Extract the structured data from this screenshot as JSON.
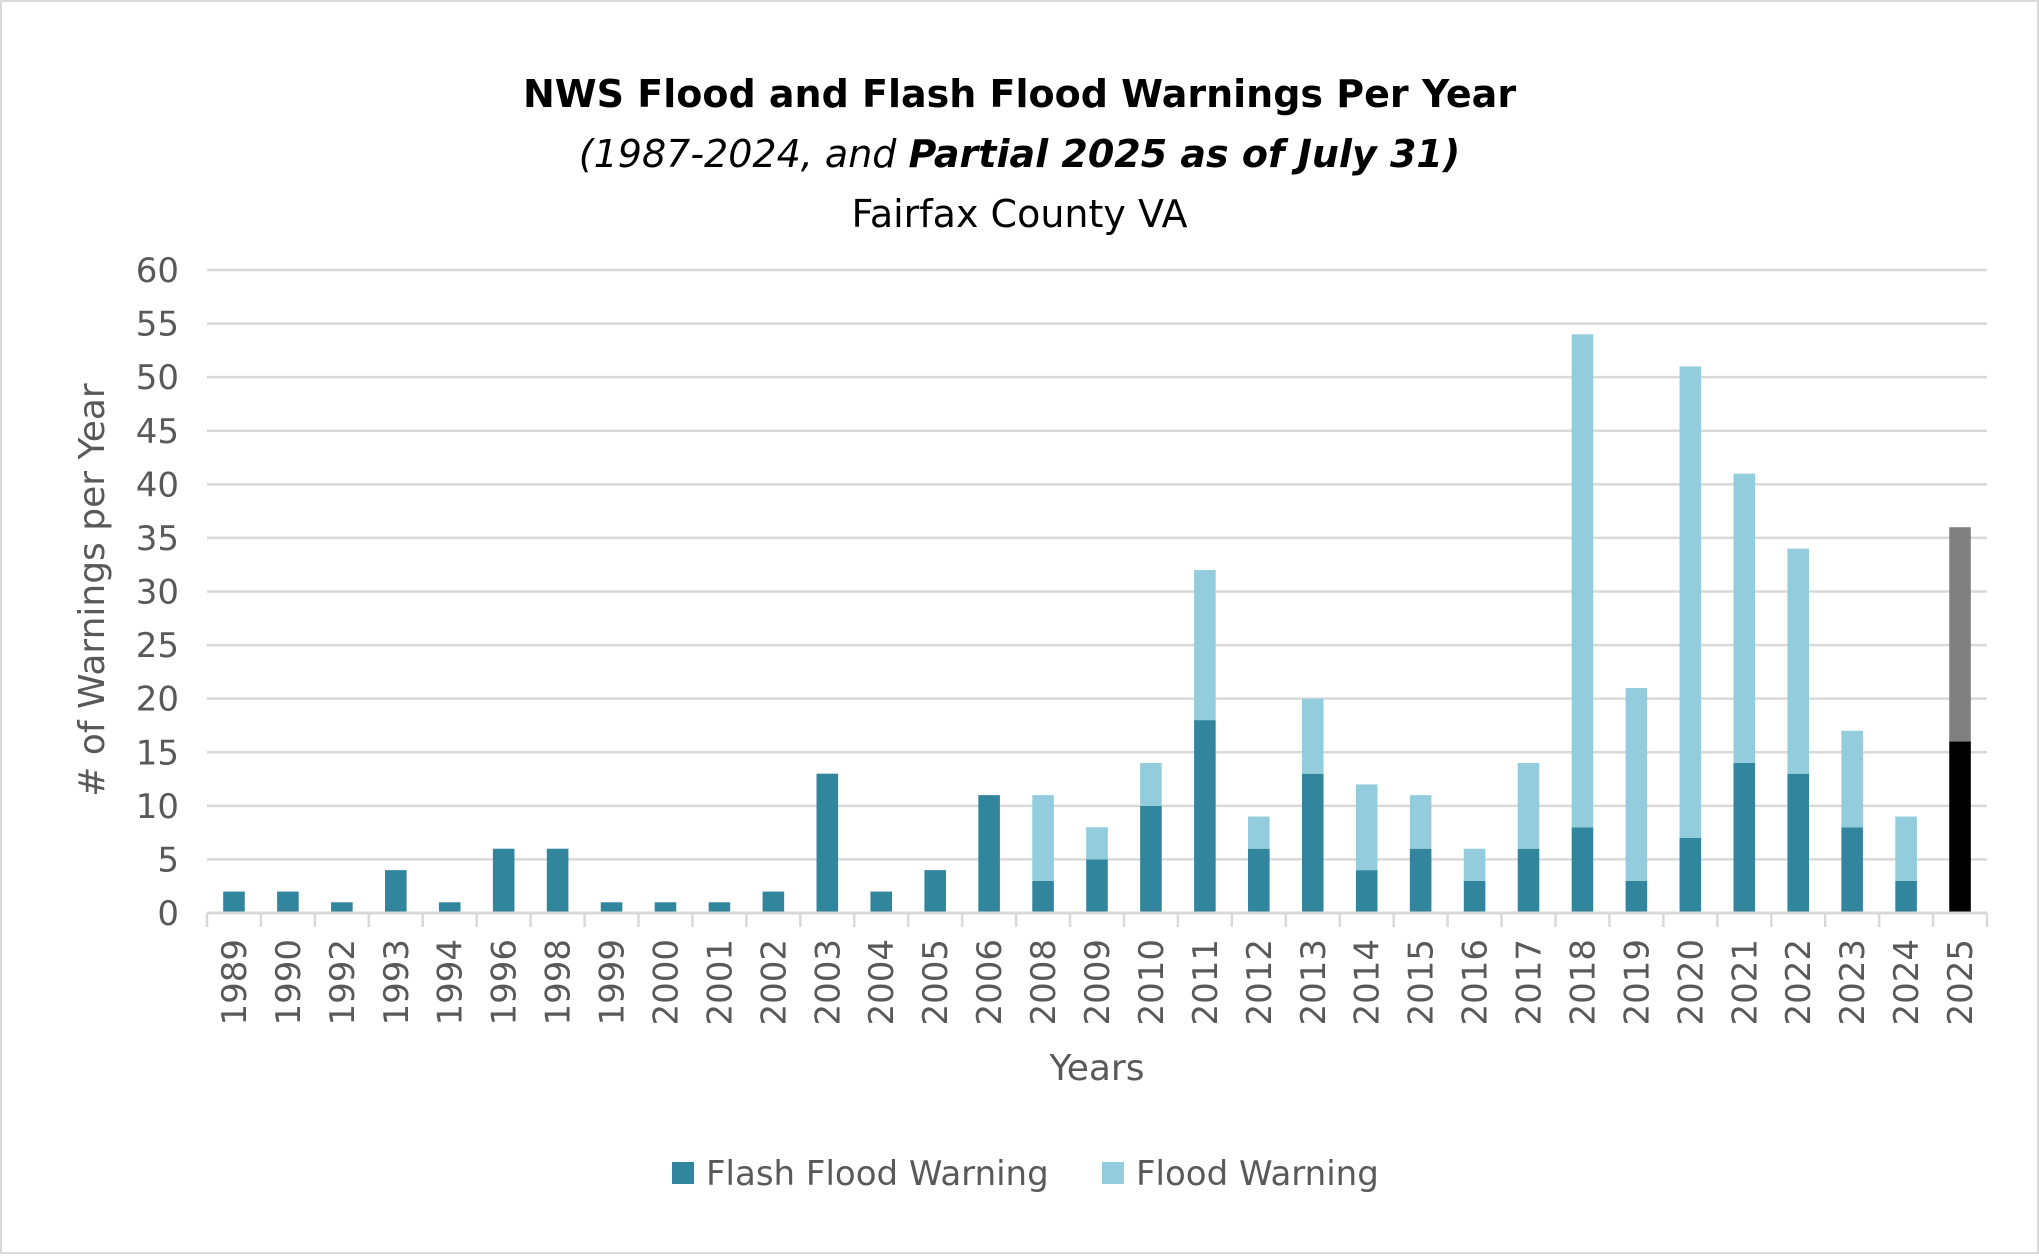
{
  "chart_data": {
    "type": "bar",
    "stacked": true,
    "title": "NWS Flood and Flash Flood Warnings Per Year",
    "subtitle_prefix": "(1987-2024, and ",
    "subtitle_bold": "Partial 2025 as of July 31)",
    "subtitle2": "Fairfax County VA",
    "xlabel": "Years",
    "ylabel": "# of Warnings per Year",
    "ylim": [
      0,
      60
    ],
    "yticks": [
      0,
      5,
      10,
      15,
      20,
      25,
      30,
      35,
      40,
      45,
      50,
      55,
      60
    ],
    "grid": true,
    "legend_position": "bottom",
    "categories": [
      "1989",
      "1990",
      "1992",
      "1993",
      "1994",
      "1996",
      "1998",
      "1999",
      "2000",
      "2001",
      "2002",
      "2003",
      "2004",
      "2005",
      "2006",
      "2008",
      "2009",
      "2010",
      "2011",
      "2012",
      "2013",
      "2014",
      "2015",
      "2016",
      "2017",
      "2018",
      "2019",
      "2020",
      "2021",
      "2022",
      "2023",
      "2024",
      "2025"
    ],
    "series": [
      {
        "name": "Flash Flood Warning",
        "color": "#31859c",
        "partial_color": "#000000",
        "values": [
          2,
          2,
          1,
          4,
          1,
          6,
          6,
          1,
          1,
          1,
          2,
          13,
          2,
          4,
          11,
          3,
          5,
          10,
          18,
          6,
          13,
          4,
          6,
          3,
          6,
          8,
          3,
          7,
          14,
          13,
          8,
          3,
          16
        ]
      },
      {
        "name": "Flood Warning",
        "color": "#93cddd",
        "partial_color": "#808080",
        "values": [
          0,
          0,
          0,
          0,
          0,
          0,
          0,
          0,
          0,
          0,
          0,
          0,
          0,
          0,
          0,
          8,
          3,
          4,
          14,
          3,
          7,
          8,
          5,
          3,
          8,
          46,
          18,
          44,
          27,
          21,
          9,
          6,
          20
        ]
      }
    ],
    "partial_category": "2025",
    "colors": {
      "grid": "#d9d9d9",
      "text": "#595959",
      "border": "#d9d9d9"
    }
  }
}
